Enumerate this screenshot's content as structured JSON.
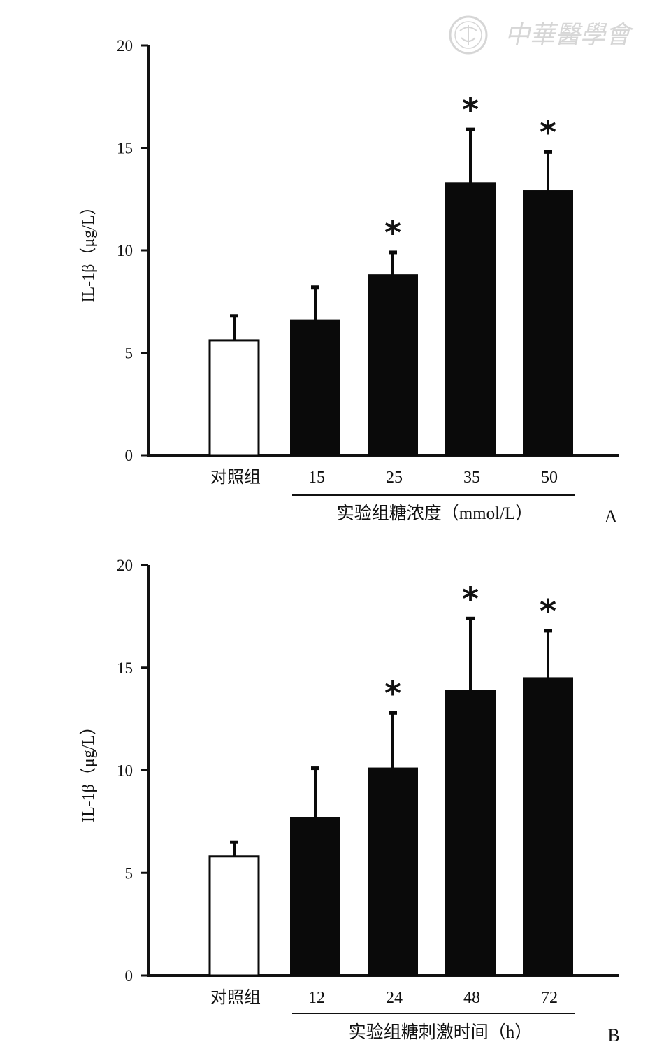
{
  "watermark": {
    "text": "中華醫學會"
  },
  "chart_data": [
    {
      "type": "bar",
      "panel": "A",
      "ylabel": "IL-1β（μg/L）",
      "group_label": "实验组糖浓度（mmol/L）",
      "categories": [
        "对照组",
        "15",
        "25",
        "35",
        "50"
      ],
      "values": [
        5.6,
        6.6,
        8.8,
        13.3,
        12.9
      ],
      "error": [
        1.2,
        1.6,
        1.1,
        2.6,
        1.9
      ],
      "significant": [
        false,
        false,
        true,
        true,
        true
      ],
      "significance_marker": "*",
      "fill": [
        "open",
        "filled",
        "filled",
        "filled",
        "filled"
      ],
      "ylim": [
        0,
        20
      ],
      "yticks": [
        0,
        5,
        10,
        15,
        20
      ],
      "ytick_labels": [
        "0",
        "5",
        "10",
        "15",
        "20"
      ],
      "grid": false,
      "legend": "none"
    },
    {
      "type": "bar",
      "panel": "B",
      "ylabel": "IL-1β（μg/L）",
      "group_label": "实验组糖刺激时间（h）",
      "categories": [
        "对照组",
        "12",
        "24",
        "48",
        "72"
      ],
      "values": [
        5.8,
        7.7,
        10.1,
        13.9,
        14.5
      ],
      "error": [
        0.7,
        2.4,
        2.7,
        3.5,
        2.3
      ],
      "significant": [
        false,
        false,
        true,
        true,
        true
      ],
      "significance_marker": "*",
      "fill": [
        "open",
        "filled",
        "filled",
        "filled",
        "filled"
      ],
      "ylim": [
        0,
        20
      ],
      "yticks": [
        0,
        5,
        10,
        15,
        20
      ],
      "ytick_labels": [
        "0",
        "5",
        "10",
        "15",
        "20"
      ],
      "grid": false,
      "legend": "none"
    }
  ],
  "colors": {
    "bar_filled": "#0a0a0a",
    "bar_open": "#ffffff",
    "axis": "#111111",
    "watermark": "#d6d6d6"
  }
}
